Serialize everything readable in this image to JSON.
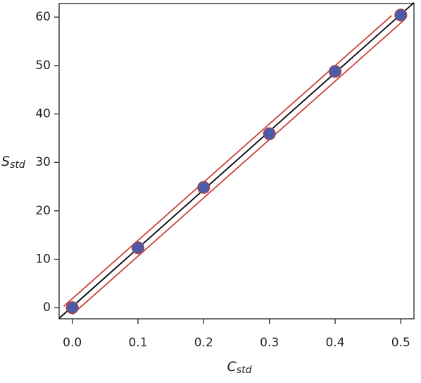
{
  "chart_data": {
    "type": "scatter",
    "x_label": {
      "main": "C",
      "sub": "std"
    },
    "y_label": {
      "main": "S",
      "sub": "std"
    },
    "xlim": [
      -0.02,
      0.52
    ],
    "ylim": [
      -2.3,
      62.8
    ],
    "xticks": [
      {
        "value": 0,
        "label": "0.0"
      },
      0.1,
      0.2,
      0.3,
      0.4,
      0.5
    ],
    "yticks": [
      0,
      10,
      20,
      30,
      40,
      50,
      60
    ],
    "points": {
      "color": "#4b5ba8",
      "edge": "#b8434a",
      "x": [
        0,
        0.1,
        0.2,
        0.3,
        0.4,
        0.5
      ],
      "values": [
        0,
        12.36,
        24.83,
        35.91,
        48.79,
        60.42
      ]
    },
    "lines": [
      {
        "color": "#000000",
        "x": [
          -0.02,
          0.52
        ],
        "values": [
          -2.2,
          62.98
        ]
      },
      {
        "color": "#c8423a",
        "x": [
          -0.013,
          0.486
        ],
        "values": [
          0.3,
          60.3
        ]
      },
      {
        "color": "#c8423a",
        "x": [
          0.0,
          0.505
        ],
        "values": [
          -1.4,
          59.4
        ]
      }
    ]
  }
}
